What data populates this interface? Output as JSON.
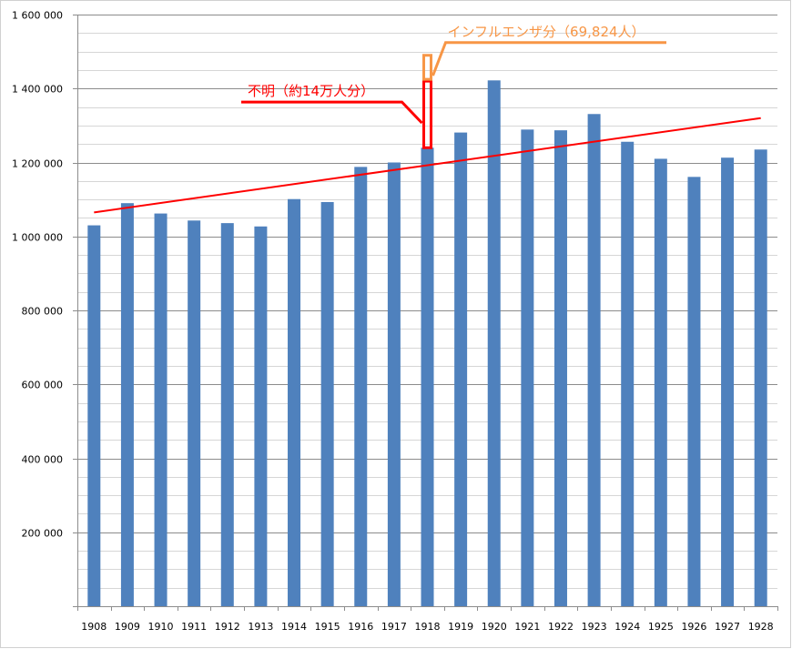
{
  "chart_data": {
    "type": "bar",
    "title": "",
    "xlabel": "",
    "ylabel": "",
    "categories": [
      "1908",
      "1909",
      "1910",
      "1911",
      "1912",
      "1913",
      "1914",
      "1915",
      "1916",
      "1917",
      "1918",
      "1919",
      "1920",
      "1921",
      "1922",
      "1923",
      "1924",
      "1925",
      "1926",
      "1927",
      "1928"
    ],
    "values": [
      1030000,
      1090000,
      1062000,
      1043000,
      1036000,
      1027000,
      1101000,
      1093000,
      1188000,
      1200000,
      1240000,
      1281000,
      1422000,
      1289000,
      1287000,
      1331000,
      1256000,
      1210000,
      1161000,
      1213000,
      1235000
    ],
    "ylim": [
      0,
      1600000
    ],
    "yticks": [
      0,
      200000,
      400000,
      600000,
      800000,
      1000000,
      1200000,
      1400000,
      1600000
    ],
    "ytick_labels": [
      "",
      "200 000",
      "400 000",
      "600 000",
      "800 000",
      "1 000 000",
      "1 200 000",
      "1 400 000",
      "1 600 000"
    ],
    "grid": true,
    "minor_gridlines_step": 50000,
    "bar_color": "#4f81bd",
    "trendline": {
      "from": {
        "x": "1908",
        "y": 1065000
      },
      "to": {
        "x": "1928",
        "y": 1320000
      },
      "color": "#ff0000"
    },
    "annotations": [
      {
        "text": "不明（約14万人分）",
        "color": "#ff0000",
        "target_category": "1918",
        "y_low": 1240000,
        "y_high": 1420000
      },
      {
        "text": "インフルエンザ分（69,824人）",
        "color": "#f79646",
        "target_category": "1918",
        "y_low": 1420000,
        "y_high": 1489824
      }
    ]
  }
}
